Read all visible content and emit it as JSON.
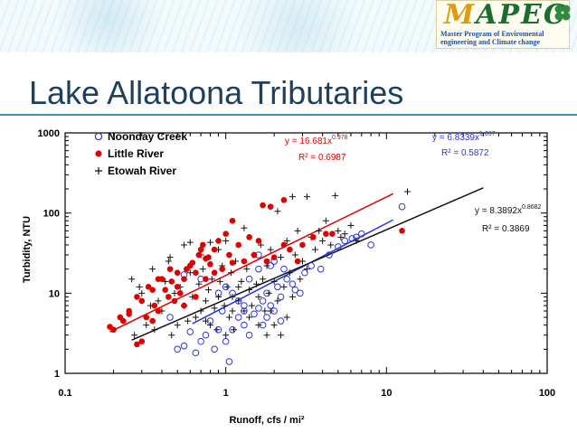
{
  "slide": {
    "title": "Lake Allatoona Tributaries",
    "logo": {
      "mark": "MAPEC",
      "line1": "Master Program of Enviromental",
      "line2": "engineering and Climate change"
    }
  },
  "colors": {
    "noonday": "#2b35d8",
    "little": "#e10000",
    "etowah": "#111111",
    "title": "#1f3f5e",
    "rule": "#3a8fb7"
  },
  "chart_data": {
    "type": "scatter",
    "xscale": "log",
    "yscale": "log",
    "xlim": [
      0.1,
      100
    ],
    "ylim": [
      1,
      1000
    ],
    "xlabel": "Runoff, cfs / mi²",
    "ylabel": "Turbidity, NTU",
    "xticks": [
      "0.1",
      "1",
      "10",
      "100"
    ],
    "yticks": [
      "1",
      "10",
      "100",
      "1000"
    ],
    "legend_position": "top-left",
    "series": [
      {
        "name": "Noonday Creek",
        "marker": "open-circle",
        "color": "#2b35d8",
        "fit": {
          "a": 6.8339,
          "b": 1.037,
          "xrange": [
            0.62,
            11
          ],
          "label": "y = 6.8339x",
          "exp": "1.037",
          "r2": "R² = 0.5872"
        },
        "points": [
          [
            0.45,
            5
          ],
          [
            0.5,
            2
          ],
          [
            0.55,
            2.2
          ],
          [
            0.6,
            3.3
          ],
          [
            0.65,
            1.8
          ],
          [
            0.7,
            2.5
          ],
          [
            0.75,
            3
          ],
          [
            0.8,
            4.5
          ],
          [
            0.85,
            2
          ],
          [
            0.9,
            3.5
          ],
          [
            1.0,
            2.5
          ],
          [
            1.05,
            1.4
          ],
          [
            1.1,
            3.5
          ],
          [
            1.2,
            5
          ],
          [
            1.3,
            4
          ],
          [
            1.3,
            6
          ],
          [
            1.4,
            3
          ],
          [
            1.5,
            5.5
          ],
          [
            1.6,
            6.5
          ],
          [
            1.7,
            8
          ],
          [
            1.8,
            10
          ],
          [
            1.9,
            7
          ],
          [
            2.0,
            6
          ],
          [
            2.1,
            12
          ],
          [
            2.2,
            9
          ],
          [
            2.4,
            15
          ],
          [
            2.6,
            13
          ],
          [
            2.9,
            10
          ],
          [
            3.1,
            18
          ],
          [
            3.4,
            22
          ],
          [
            3.9,
            20
          ],
          [
            4.4,
            30
          ],
          [
            5.0,
            38
          ],
          [
            5.5,
            45
          ],
          [
            6.1,
            48
          ],
          [
            6.5,
            50
          ],
          [
            7.0,
            55
          ],
          [
            8.0,
            40
          ],
          [
            12.5,
            120
          ],
          [
            0.9,
            10
          ],
          [
            1.0,
            12
          ],
          [
            1.2,
            8
          ],
          [
            1.4,
            15
          ],
          [
            1.6,
            20
          ],
          [
            1.9,
            22
          ],
          [
            2.0,
            25
          ],
          [
            1.6,
            30
          ],
          [
            0.55,
            17
          ],
          [
            0.7,
            15
          ],
          [
            1.1,
            10
          ],
          [
            1.3,
            7
          ],
          [
            2.3,
            20
          ],
          [
            2.7,
            11
          ],
          [
            1.7,
            4
          ],
          [
            1.8,
            5
          ],
          [
            2.2,
            4.5
          ],
          [
            0.95,
            6
          ]
        ]
      },
      {
        "name": "Little River",
        "marker": "filled-circle",
        "color": "#e10000",
        "fit": {
          "a": 16.681,
          "b": 0.978,
          "xrange": [
            0.19,
            11
          ],
          "label": "y = 16.681x",
          "exp": "0.978",
          "r2": "R² = 0.6987"
        },
        "points": [
          [
            0.19,
            3.8
          ],
          [
            0.2,
            3.5
          ],
          [
            0.22,
            5
          ],
          [
            0.23,
            4.5
          ],
          [
            0.25,
            6
          ],
          [
            0.28,
            9
          ],
          [
            0.3,
            8
          ],
          [
            0.32,
            5
          ],
          [
            0.33,
            12
          ],
          [
            0.35,
            11
          ],
          [
            0.36,
            7
          ],
          [
            0.38,
            6
          ],
          [
            0.4,
            15
          ],
          [
            0.42,
            11
          ],
          [
            0.44,
            9
          ],
          [
            0.46,
            14
          ],
          [
            0.48,
            8
          ],
          [
            0.5,
            18
          ],
          [
            0.52,
            10
          ],
          [
            0.55,
            15
          ],
          [
            0.57,
            20
          ],
          [
            0.6,
            22
          ],
          [
            0.62,
            24
          ],
          [
            0.65,
            18
          ],
          [
            0.68,
            30
          ],
          [
            0.7,
            35
          ],
          [
            0.72,
            40
          ],
          [
            0.75,
            15
          ],
          [
            0.78,
            28
          ],
          [
            0.8,
            23
          ],
          [
            0.85,
            35
          ],
          [
            0.9,
            45
          ],
          [
            0.95,
            20
          ],
          [
            1.0,
            55
          ],
          [
            1.05,
            30
          ],
          [
            1.1,
            24
          ],
          [
            1.2,
            40
          ],
          [
            1.3,
            25
          ],
          [
            1.4,
            50
          ],
          [
            1.5,
            30
          ],
          [
            1.6,
            45
          ],
          [
            1.8,
            25
          ],
          [
            2.0,
            28
          ],
          [
            2.3,
            40
          ],
          [
            2.5,
            35
          ],
          [
            2.8,
            25
          ],
          [
            3.0,
            40
          ],
          [
            3.5,
            50
          ],
          [
            4.2,
            55
          ],
          [
            4.6,
            55
          ],
          [
            12.5,
            60
          ],
          [
            2.3,
            145
          ],
          [
            1.1,
            80
          ],
          [
            1.7,
            125
          ],
          [
            1.9,
            120
          ],
          [
            0.3,
            2.5
          ],
          [
            0.28,
            2.3
          ],
          [
            0.55,
            7
          ],
          [
            0.65,
            9
          ],
          [
            0.75,
            27
          ],
          [
            0.85,
            18
          ],
          [
            0.5,
            12
          ],
          [
            0.38,
            15
          ],
          [
            0.45,
            20
          ],
          [
            0.25,
            5.5
          ],
          [
            0.35,
            4.5
          ]
        ]
      },
      {
        "name": "Etowah River",
        "marker": "plus",
        "color": "#111111",
        "fit": {
          "a": 8.3892,
          "b": 0.8682,
          "xrange": [
            0.26,
            40
          ],
          "label": "y = 8.3892x",
          "exp": "0.8682",
          "r2": "R² = 0.3869"
        },
        "points": [
          [
            0.26,
            15
          ],
          [
            0.27,
            3
          ],
          [
            0.29,
            12
          ],
          [
            0.3,
            10
          ],
          [
            0.32,
            4
          ],
          [
            0.34,
            7
          ],
          [
            0.35,
            20
          ],
          [
            0.36,
            3.5
          ],
          [
            0.38,
            8
          ],
          [
            0.4,
            6
          ],
          [
            0.42,
            14
          ],
          [
            0.44,
            25
          ],
          [
            0.46,
            3
          ],
          [
            0.48,
            10
          ],
          [
            0.5,
            4
          ],
          [
            0.52,
            12
          ],
          [
            0.55,
            7
          ],
          [
            0.58,
            4.5
          ],
          [
            0.6,
            18
          ],
          [
            0.62,
            9
          ],
          [
            0.65,
            5
          ],
          [
            0.68,
            13
          ],
          [
            0.7,
            6
          ],
          [
            0.72,
            20
          ],
          [
            0.75,
            8
          ],
          [
            0.78,
            11
          ],
          [
            0.8,
            4
          ],
          [
            0.82,
            15
          ],
          [
            0.85,
            6.5
          ],
          [
            0.88,
            3.5
          ],
          [
            0.9,
            9
          ],
          [
            0.92,
            14
          ],
          [
            0.95,
            22
          ],
          [
            0.98,
            7
          ],
          [
            1.0,
            3
          ],
          [
            1.02,
            12
          ],
          [
            1.05,
            5
          ],
          [
            1.08,
            18
          ],
          [
            1.1,
            9
          ],
          [
            1.12,
            3.5
          ],
          [
            1.15,
            25
          ],
          [
            1.2,
            8
          ],
          [
            1.25,
            14
          ],
          [
            1.3,
            6
          ],
          [
            1.35,
            20
          ],
          [
            1.4,
            11
          ],
          [
            1.45,
            7
          ],
          [
            1.5,
            30
          ],
          [
            1.55,
            13
          ],
          [
            1.6,
            9
          ],
          [
            1.65,
            40
          ],
          [
            1.7,
            15
          ],
          [
            1.75,
            6
          ],
          [
            1.8,
            22
          ],
          [
            1.85,
            10
          ],
          [
            1.9,
            35
          ],
          [
            2.0,
            14
          ],
          [
            2.1,
            8
          ],
          [
            2.2,
            28
          ],
          [
            2.3,
            12
          ],
          [
            2.4,
            45
          ],
          [
            2.5,
            18
          ],
          [
            2.6,
            9
          ],
          [
            2.7,
            30
          ],
          [
            2.8,
            60
          ],
          [
            2.9,
            15
          ],
          [
            3.0,
            25
          ],
          [
            3.2,
            20
          ],
          [
            3.4,
            50
          ],
          [
            3.6,
            35
          ],
          [
            3.8,
            60
          ],
          [
            4.0,
            45
          ],
          [
            4.2,
            80
          ],
          [
            4.5,
            40
          ],
          [
            5.0,
            60
          ],
          [
            5.2,
            50
          ],
          [
            5.5,
            55
          ],
          [
            6.0,
            70
          ],
          [
            6.5,
            45
          ],
          [
            13.5,
            185
          ],
          [
            1.3,
            65
          ],
          [
            2.1,
            105
          ],
          [
            2.6,
            160
          ],
          [
            3.2,
            160
          ],
          [
            4.8,
            165
          ],
          [
            0.6,
            43
          ],
          [
            0.8,
            43
          ],
          [
            1.0,
            45
          ],
          [
            0.9,
            35
          ],
          [
            0.7,
            30
          ],
          [
            0.55,
            40
          ],
          [
            0.45,
            28
          ],
          [
            1.2,
            12
          ],
          [
            1.8,
            3
          ],
          [
            2.0,
            4
          ],
          [
            2.4,
            5
          ],
          [
            1.4,
            5
          ],
          [
            1.6,
            4
          ],
          [
            0.75,
            4.5
          ],
          [
            1.1,
            6
          ],
          [
            2.2,
            3
          ],
          [
            1.9,
            6
          ]
        ]
      }
    ]
  }
}
